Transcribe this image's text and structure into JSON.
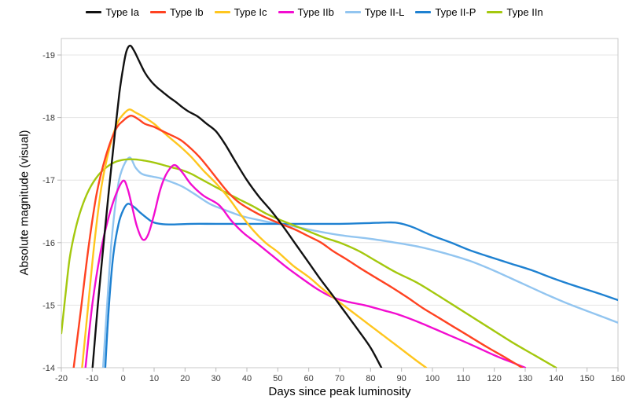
{
  "chart_data": {
    "type": "line",
    "title": "",
    "xlabel": "Days since peak luminosity",
    "ylabel": "Absolute magnitude (visual)",
    "xlim": [
      -20,
      160
    ],
    "ylim": [
      -19.3,
      -14
    ],
    "y_axis_inverted": true,
    "grid": "horizontal-only",
    "legend_position": "top-center",
    "x_ticks": [
      -20,
      -10,
      0,
      10,
      20,
      30,
      40,
      50,
      60,
      70,
      80,
      90,
      100,
      110,
      120,
      130,
      140,
      150,
      160
    ],
    "y_ticks": [
      -19,
      -18,
      -17,
      -16,
      -15,
      -14
    ],
    "colors": {
      "grid": "#e4e4e4",
      "plot_border": "#c9c9c9",
      "tick_mark": "#b7b7b7",
      "tick_text": "#3c3c3c"
    },
    "series": [
      {
        "name": "Type Ia",
        "color": "#111111",
        "points": [
          [
            -9.9,
            -14
          ],
          [
            -8.2,
            -15
          ],
          [
            -6.3,
            -16
          ],
          [
            -4.5,
            -16.9
          ],
          [
            -2.8,
            -17.7
          ],
          [
            -1.2,
            -18.4
          ],
          [
            0,
            -18.8
          ],
          [
            1,
            -19.05
          ],
          [
            2.2,
            -19.15
          ],
          [
            3.5,
            -19.07
          ],
          [
            5,
            -18.92
          ],
          [
            7,
            -18.72
          ],
          [
            9,
            -18.58
          ],
          [
            11,
            -18.48
          ],
          [
            13,
            -18.4
          ],
          [
            15,
            -18.32
          ],
          [
            17,
            -18.25
          ],
          [
            19,
            -18.17
          ],
          [
            21,
            -18.1
          ],
          [
            24,
            -18.02
          ],
          [
            27,
            -17.9
          ],
          [
            30,
            -17.78
          ],
          [
            33,
            -17.57
          ],
          [
            36,
            -17.32
          ],
          [
            40,
            -17.0
          ],
          [
            44,
            -16.73
          ],
          [
            48,
            -16.5
          ],
          [
            52,
            -16.24
          ],
          [
            56,
            -15.96
          ],
          [
            60,
            -15.68
          ],
          [
            64,
            -15.4
          ],
          [
            68,
            -15.14
          ],
          [
            72,
            -14.87
          ],
          [
            76,
            -14.6
          ],
          [
            80,
            -14.32
          ],
          [
            83.5,
            -14.0
          ]
        ]
      },
      {
        "name": "Type Ib",
        "color": "#ff4221",
        "points": [
          [
            -16,
            -14
          ],
          [
            -13.5,
            -15
          ],
          [
            -11,
            -16
          ],
          [
            -8.5,
            -16.8
          ],
          [
            -5.5,
            -17.4
          ],
          [
            -2.5,
            -17.8
          ],
          [
            0,
            -17.95
          ],
          [
            2.5,
            -18.03
          ],
          [
            5,
            -17.97
          ],
          [
            7,
            -17.9
          ],
          [
            10,
            -17.85
          ],
          [
            12,
            -17.8
          ],
          [
            15,
            -17.73
          ],
          [
            18.6,
            -17.64
          ],
          [
            22,
            -17.5
          ],
          [
            25,
            -17.35
          ],
          [
            28,
            -17.17
          ],
          [
            31,
            -16.98
          ],
          [
            34,
            -16.8
          ],
          [
            37,
            -16.66
          ],
          [
            40,
            -16.56
          ],
          [
            44,
            -16.45
          ],
          [
            48,
            -16.36
          ],
          [
            52,
            -16.28
          ],
          [
            56,
            -16.2
          ],
          [
            60,
            -16.1
          ],
          [
            64,
            -16.0
          ],
          [
            68,
            -15.86
          ],
          [
            72,
            -15.74
          ],
          [
            77,
            -15.58
          ],
          [
            82,
            -15.43
          ],
          [
            87,
            -15.28
          ],
          [
            92,
            -15.12
          ],
          [
            97,
            -14.95
          ],
          [
            102,
            -14.8
          ],
          [
            107,
            -14.65
          ],
          [
            112,
            -14.5
          ],
          [
            118,
            -14.32
          ],
          [
            124,
            -14.15
          ],
          [
            129,
            -14.0
          ]
        ]
      },
      {
        "name": "Type Ic",
        "color": "#ffc61e",
        "points": [
          [
            -13.3,
            -14
          ],
          [
            -11.3,
            -15
          ],
          [
            -9.3,
            -16
          ],
          [
            -7,
            -16.9
          ],
          [
            -4.5,
            -17.5
          ],
          [
            -2,
            -17.9
          ],
          [
            0,
            -18.05
          ],
          [
            2,
            -18.13
          ],
          [
            4,
            -18.08
          ],
          [
            7,
            -18.0
          ],
          [
            10,
            -17.9
          ],
          [
            12,
            -17.81
          ],
          [
            15,
            -17.68
          ],
          [
            18.6,
            -17.53
          ],
          [
            22,
            -17.37
          ],
          [
            26,
            -17.15
          ],
          [
            30,
            -16.95
          ],
          [
            34,
            -16.72
          ],
          [
            38,
            -16.45
          ],
          [
            42,
            -16.2
          ],
          [
            46,
            -16.0
          ],
          [
            50,
            -15.85
          ],
          [
            55,
            -15.63
          ],
          [
            60,
            -15.45
          ],
          [
            64,
            -15.28
          ],
          [
            68,
            -15.12
          ],
          [
            72,
            -14.97
          ],
          [
            76,
            -14.82
          ],
          [
            80,
            -14.67
          ],
          [
            84,
            -14.52
          ],
          [
            88,
            -14.37
          ],
          [
            92,
            -14.22
          ],
          [
            96,
            -14.07
          ],
          [
            98,
            -14.0
          ]
        ]
      },
      {
        "name": "Type IIb",
        "color": "#f20dd0",
        "points": [
          [
            -12.2,
            -14
          ],
          [
            -10,
            -15
          ],
          [
            -7.5,
            -15.8
          ],
          [
            -5,
            -16.35
          ],
          [
            -2.5,
            -16.75
          ],
          [
            0,
            -16.99
          ],
          [
            1.5,
            -16.85
          ],
          [
            3,
            -16.55
          ],
          [
            4.5,
            -16.25
          ],
          [
            6.3,
            -16.05
          ],
          [
            8,
            -16.12
          ],
          [
            10,
            -16.45
          ],
          [
            12,
            -16.85
          ],
          [
            14,
            -17.1
          ],
          [
            16.5,
            -17.24
          ],
          [
            19,
            -17.13
          ],
          [
            22,
            -16.93
          ],
          [
            26,
            -16.75
          ],
          [
            31,
            -16.6
          ],
          [
            35,
            -16.35
          ],
          [
            39,
            -16.15
          ],
          [
            43,
            -16.0
          ],
          [
            48,
            -15.8
          ],
          [
            53,
            -15.6
          ],
          [
            58,
            -15.42
          ],
          [
            63,
            -15.25
          ],
          [
            68,
            -15.12
          ],
          [
            73,
            -15.05
          ],
          [
            78,
            -15.0
          ],
          [
            84,
            -14.92
          ],
          [
            89,
            -14.85
          ],
          [
            96,
            -14.72
          ],
          [
            104,
            -14.55
          ],
          [
            112,
            -14.38
          ],
          [
            120,
            -14.2
          ],
          [
            126,
            -14.08
          ],
          [
            130,
            -14.0
          ]
        ]
      },
      {
        "name": "Type II-L",
        "color": "#92c5f0",
        "points": [
          [
            -6.5,
            -14
          ],
          [
            -5.2,
            -15
          ],
          [
            -3.8,
            -16
          ],
          [
            -2,
            -16.8
          ],
          [
            -0.5,
            -17.15
          ],
          [
            2,
            -17.36
          ],
          [
            4,
            -17.2
          ],
          [
            6,
            -17.1
          ],
          [
            9,
            -17.06
          ],
          [
            12,
            -17.03
          ],
          [
            15,
            -16.98
          ],
          [
            19,
            -16.9
          ],
          [
            23,
            -16.78
          ],
          [
            28,
            -16.62
          ],
          [
            33,
            -16.52
          ],
          [
            38,
            -16.43
          ],
          [
            43,
            -16.37
          ],
          [
            48,
            -16.32
          ],
          [
            55,
            -16.26
          ],
          [
            62,
            -16.19
          ],
          [
            70,
            -16.12
          ],
          [
            80,
            -16.06
          ],
          [
            88,
            -16.0
          ],
          [
            96,
            -15.93
          ],
          [
            104,
            -15.83
          ],
          [
            112,
            -15.71
          ],
          [
            120,
            -15.55
          ],
          [
            128,
            -15.37
          ],
          [
            136,
            -15.19
          ],
          [
            144,
            -15.02
          ],
          [
            152,
            -14.87
          ],
          [
            160,
            -14.72
          ]
        ]
      },
      {
        "name": "Type II-P",
        "color": "#1e81d1",
        "points": [
          [
            -5.8,
            -14
          ],
          [
            -4.6,
            -15
          ],
          [
            -3.2,
            -15.8
          ],
          [
            -1.5,
            -16.3
          ],
          [
            0,
            -16.52
          ],
          [
            1.5,
            -16.62
          ],
          [
            3.5,
            -16.57
          ],
          [
            5.5,
            -16.48
          ],
          [
            7.5,
            -16.4
          ],
          [
            9.5,
            -16.33
          ],
          [
            12,
            -16.3
          ],
          [
            16,
            -16.29
          ],
          [
            22,
            -16.3
          ],
          [
            30,
            -16.3
          ],
          [
            40,
            -16.3
          ],
          [
            50,
            -16.3
          ],
          [
            60,
            -16.3
          ],
          [
            70,
            -16.3
          ],
          [
            78,
            -16.31
          ],
          [
            84,
            -16.32
          ],
          [
            88,
            -16.32
          ],
          [
            91,
            -16.29
          ],
          [
            94,
            -16.24
          ],
          [
            100,
            -16.11
          ],
          [
            106,
            -16.0
          ],
          [
            112,
            -15.88
          ],
          [
            118,
            -15.78
          ],
          [
            125,
            -15.67
          ],
          [
            132,
            -15.56
          ],
          [
            139,
            -15.43
          ],
          [
            146,
            -15.31
          ],
          [
            153,
            -15.2
          ],
          [
            160,
            -15.08
          ]
        ]
      },
      {
        "name": "Type IIn",
        "color": "#a4c80e",
        "points": [
          [
            -20,
            -14.55
          ],
          [
            -18.8,
            -15.1
          ],
          [
            -17.3,
            -15.75
          ],
          [
            -15.5,
            -16.2
          ],
          [
            -13.5,
            -16.55
          ],
          [
            -11,
            -16.85
          ],
          [
            -8,
            -17.08
          ],
          [
            -5,
            -17.22
          ],
          [
            -2,
            -17.3
          ],
          [
            1,
            -17.33
          ],
          [
            4,
            -17.33
          ],
          [
            7,
            -17.31
          ],
          [
            10,
            -17.28
          ],
          [
            13,
            -17.24
          ],
          [
            16,
            -17.2
          ],
          [
            19,
            -17.16
          ],
          [
            22,
            -17.1
          ],
          [
            25,
            -17.02
          ],
          [
            28,
            -16.94
          ],
          [
            31,
            -16.86
          ],
          [
            34,
            -16.78
          ],
          [
            38,
            -16.68
          ],
          [
            42,
            -16.58
          ],
          [
            46,
            -16.47
          ],
          [
            50,
            -16.38
          ],
          [
            55,
            -16.28
          ],
          [
            60,
            -16.18
          ],
          [
            65,
            -16.08
          ],
          [
            70,
            -16.0
          ],
          [
            76,
            -15.87
          ],
          [
            82,
            -15.7
          ],
          [
            88,
            -15.53
          ],
          [
            95,
            -15.36
          ],
          [
            102,
            -15.15
          ],
          [
            110,
            -14.9
          ],
          [
            118,
            -14.65
          ],
          [
            126,
            -14.4
          ],
          [
            133,
            -14.2
          ],
          [
            140,
            -14.0
          ]
        ]
      }
    ]
  }
}
